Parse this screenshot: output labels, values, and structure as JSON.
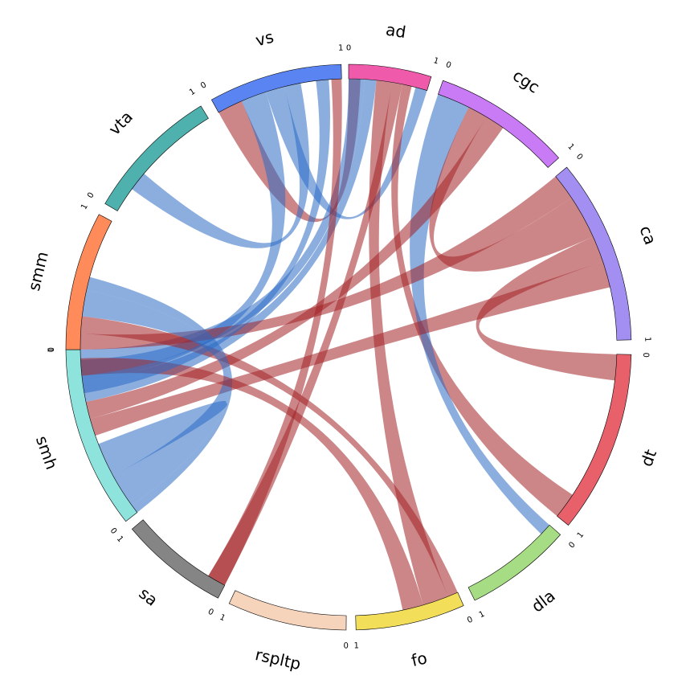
{
  "chart_data": {
    "type": "chord",
    "segments": [
      {
        "name": "ad",
        "color": "#f05aaa",
        "start_deg": 90.0,
        "end_deg": 73.0
      },
      {
        "name": "cgc",
        "color": "#c97af5",
        "start_deg": 70.5,
        "end_deg": 42.0
      },
      {
        "name": "ca",
        "color": "#a38ef2",
        "start_deg": 39.5,
        "end_deg": 1.5
      },
      {
        "name": "dt",
        "color": "#e8606a",
        "start_deg": -1.5,
        "end_deg": -39.0
      },
      {
        "name": "dla",
        "color": "#a6dd84",
        "start_deg": -41.5,
        "end_deg": -63.5
      },
      {
        "name": "fo",
        "color": "#f3de5a",
        "start_deg": -66.0,
        "end_deg": -88.5
      },
      {
        "name": "rspltp",
        "color": "#f6d3bb",
        "start_deg": -90.5,
        "end_deg": -115.0
      },
      {
        "name": "sa",
        "color": "#858585",
        "start_deg": -117.5,
        "end_deg": -140.0
      },
      {
        "name": "smh",
        "color": "#8fe3dd",
        "start_deg": -142.0,
        "end_deg": -179.5
      },
      {
        "name": "smm",
        "color": "#ff8a5a",
        "start_deg": 180.5,
        "end_deg": 152.0
      },
      {
        "name": "vta",
        "color": "#4fb1ae",
        "start_deg": 149.5,
        "end_deg": 121.5
      },
      {
        "name": "vs",
        "color": "#5b84f3",
        "start_deg": 119.0,
        "end_deg": 91.5
      }
    ],
    "tick_labels": {
      "start": "0",
      "end": "1"
    },
    "links": [
      {
        "from": "vs",
        "f0": 0.0,
        "f1": 0.2,
        "to": "ad",
        "t0": 0.0,
        "t1": 0.15,
        "color": "red"
      },
      {
        "from": "vs",
        "f0": 0.2,
        "f1": 0.4,
        "to": "smh",
        "t0": 0.82,
        "t1": 0.94,
        "color": "blue"
      },
      {
        "from": "vs",
        "f0": 0.4,
        "f1": 0.55,
        "to": "ad",
        "t0": 0.85,
        "t1": 1.0,
        "color": "blue"
      },
      {
        "from": "vta",
        "f0": 0.2,
        "f1": 0.35,
        "to": "vs",
        "t0": 0.55,
        "t1": 0.68,
        "color": "blue"
      },
      {
        "from": "ad",
        "f0": 0.0,
        "f1": 0.2,
        "to": "smh",
        "t0": 0.85,
        "t1": 1.0,
        "color": "blue"
      },
      {
        "from": "ad",
        "f0": 0.2,
        "f1": 0.35,
        "to": "smh",
        "t0": 0.7,
        "t1": 0.82,
        "color": "blue"
      },
      {
        "from": "ad",
        "f0": 0.35,
        "f1": 0.55,
        "to": "fo",
        "t0": 0.1,
        "t1": 0.35,
        "color": "red"
      },
      {
        "from": "ad",
        "f0": 0.55,
        "f1": 0.68,
        "to": "sa",
        "t0": 0.0,
        "t1": 0.18,
        "color": "red"
      },
      {
        "from": "ad",
        "f0": 0.68,
        "f1": 0.8,
        "to": "dt",
        "t0": 0.85,
        "t1": 1.0,
        "color": "red"
      },
      {
        "from": "cgc",
        "f0": 0.0,
        "f1": 0.25,
        "to": "dla",
        "t0": 0.0,
        "t1": 0.12,
        "color": "blue"
      },
      {
        "from": "cgc",
        "f0": 0.25,
        "f1": 0.4,
        "to": "ca",
        "t0": 0.15,
        "t1": 0.4,
        "color": "red"
      },
      {
        "from": "cgc",
        "f0": 0.4,
        "f1": 0.55,
        "to": "smh",
        "t0": 0.6,
        "t1": 0.7,
        "color": "red"
      },
      {
        "from": "ca",
        "f0": 0.0,
        "f1": 0.15,
        "to": "smm",
        "t0": 0.0,
        "t1": 0.12,
        "color": "red"
      },
      {
        "from": "ca",
        "f0": 0.4,
        "f1": 0.55,
        "to": "dt",
        "t0": 0.0,
        "t1": 0.15,
        "color": "red"
      },
      {
        "from": "ca",
        "f0": 0.55,
        "f1": 0.7,
        "to": "smh",
        "t0": 0.5,
        "t1": 0.6,
        "color": "red"
      },
      {
        "from": "smm",
        "f0": 0.12,
        "f1": 0.25,
        "to": "fo",
        "t0": 0.0,
        "t1": 0.1,
        "color": "red"
      },
      {
        "from": "smm",
        "f0": 0.25,
        "f1": 0.45,
        "to": "smh",
        "t0": 0.05,
        "t1": 0.25,
        "color": "blue"
      },
      {
        "from": "smh",
        "f0": 0.0,
        "f1": 0.05,
        "to": "smm",
        "t0": 0.45,
        "t1": 0.55,
        "color": "blue"
      },
      {
        "from": "smh",
        "f0": 0.25,
        "f1": 0.45,
        "to": "smh",
        "t0": 0.3,
        "t1": 0.45,
        "color": "blue"
      },
      {
        "from": "smh",
        "f0": 0.85,
        "f1": 0.95,
        "to": "fo",
        "t0": 0.35,
        "t1": 0.55,
        "color": "red"
      },
      {
        "from": "sa",
        "f0": 0.0,
        "f1": 0.18,
        "to": "vs",
        "t0": 0.92,
        "t1": 1.0,
        "color": "red"
      },
      {
        "from": "smh",
        "f0": 0.75,
        "f1": 0.85,
        "to": "vs",
        "t0": 0.8,
        "t1": 0.9,
        "color": "blue"
      }
    ],
    "link_colors": {
      "red": "#a32226",
      "blue": "#2b6cc4"
    }
  }
}
